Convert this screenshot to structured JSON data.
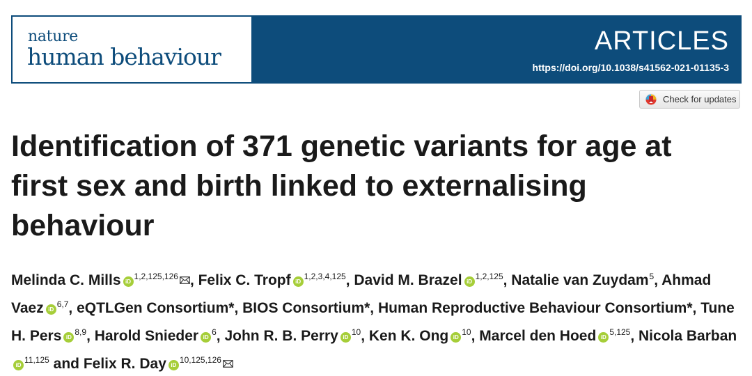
{
  "journal": {
    "name_top": "nature",
    "name_bottom": "human behaviour"
  },
  "section": "ARTICLES",
  "doi": "https://doi.org/10.1038/s41562-021-01135-3",
  "check_updates": "Check for updates",
  "title": "Identification of 371 genetic variants for age at first sex and birth linked to externalising behaviour",
  "authors": [
    {
      "name": "Melinda C. Mills",
      "orcid": true,
      "aff": "1,2,125,126",
      "mail": true,
      "sep": ", "
    },
    {
      "name": "Felix C. Tropf",
      "orcid": true,
      "aff": "1,2,3,4,125",
      "sep": ", "
    },
    {
      "name": "David M. Brazel",
      "orcid": true,
      "aff": "1,2,125",
      "sep": ", "
    },
    {
      "name": "Natalie van Zuydam",
      "aff": "5",
      "sep": ", "
    },
    {
      "name": "Ahmad Vaez",
      "orcid": true,
      "aff": "6,7",
      "sep": ", "
    },
    {
      "name": "eQTLGen Consortium*",
      "sep": ", "
    },
    {
      "name": "BIOS Consortium*",
      "sep": ", "
    },
    {
      "name": "Human Reproductive Behaviour Consortium*",
      "sep": ", "
    },
    {
      "name": "Tune H. Pers",
      "orcid": true,
      "aff": "8,9",
      "sep": ", "
    },
    {
      "name": "Harold Snieder",
      "orcid": true,
      "aff": "6",
      "sep": ", "
    },
    {
      "name": "John R. B. Perry",
      "orcid": true,
      "aff": "10",
      "sep": ", "
    },
    {
      "name": "Ken K. Ong",
      "orcid": true,
      "aff": "10",
      "sep": ", "
    },
    {
      "name": "Marcel den Hoed",
      "orcid": true,
      "aff": "5,125",
      "sep": ", "
    },
    {
      "name": "Nicola Barban",
      "orcid": true,
      "aff": "11,125",
      "sep": " and "
    },
    {
      "name": "Felix R. Day",
      "orcid": true,
      "aff": "10,125,126",
      "mail": true,
      "sep": ""
    }
  ],
  "colors": {
    "banner": "#0d4c7b",
    "orcid": "#a6ce39"
  },
  "icons": {
    "orcid": "orcid-icon",
    "mail": "envelope-icon",
    "check": "crossmark-icon"
  }
}
